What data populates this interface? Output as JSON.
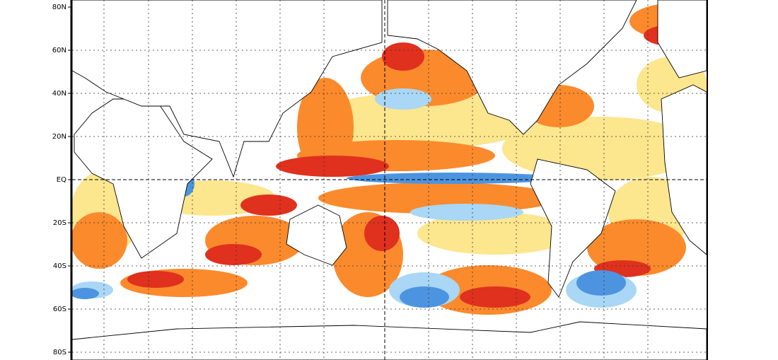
{
  "map": {
    "lat_labels": [
      "80N",
      "60N",
      "40N",
      "20N",
      "EQ",
      "20S",
      "40S",
      "60S",
      "80S"
    ]
  }
}
